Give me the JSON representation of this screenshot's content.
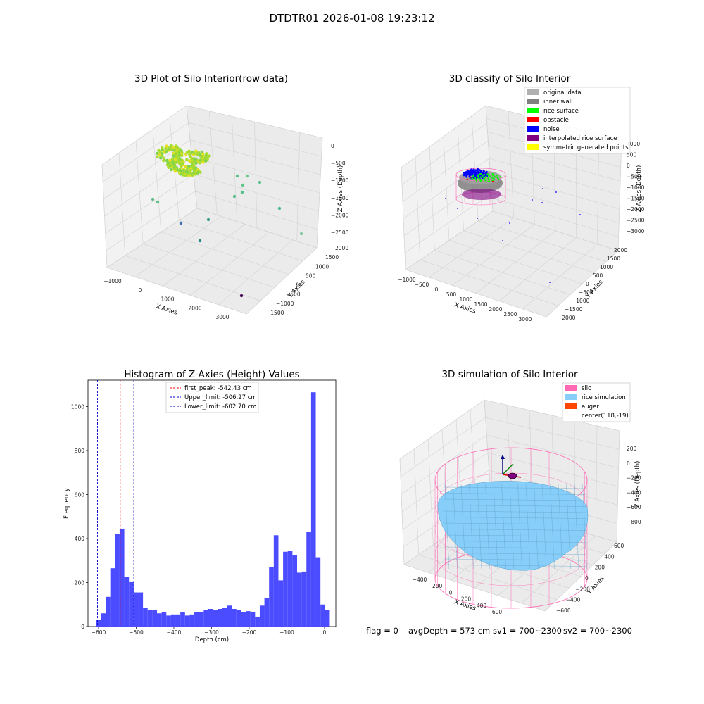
{
  "suptitle": "DTDTR01 2026-01-08 19:23:12",
  "footer": {
    "flag": "flag = 0",
    "avg": "avgDepth = 573 cm",
    "sv1": "sv1 = 700~2300",
    "sv2": "sv2 = 700~2300"
  },
  "colors": {
    "hist_bar": "#4b4bff",
    "first_peak": "#ff0000",
    "limit": "#0000cc",
    "rice_surface": "#00ff00",
    "noise": "#0000ff",
    "inner_wall": "#808080",
    "silo": "#ff69b4",
    "rice_sim": "#87cefa",
    "auger": "#ff4500"
  },
  "chart_data": [
    {
      "id": "raw3d",
      "type": "scatter",
      "title": "3D Plot of Silo Interior(row data)",
      "xlabel": "X Axies",
      "ylabel": "Y Axies",
      "zlabel": "Z Axies (Depth)",
      "xticks": [
        "−1000",
        "0",
        "1000",
        "2000",
        "3000"
      ],
      "yticks": [
        "−1500",
        "−1000",
        "−500",
        "0",
        "500",
        "1000",
        "1500",
        "2000"
      ],
      "zticks": [
        "0",
        "−500",
        "−1000",
        "−1500",
        "−2000",
        "−2500"
      ]
    },
    {
      "id": "classify3d",
      "type": "scatter",
      "title": "3D classify of Silo Interior",
      "xlabel": "X Axies",
      "ylabel": "Y Axies",
      "zlabel": "Z Axies (Depth)",
      "xticks": [
        "−1000",
        "−500",
        "0",
        "500",
        "1000",
        "1500",
        "2000",
        "2500",
        "3000"
      ],
      "yticks": [
        "−2000",
        "−1500",
        "−1000",
        "−500",
        "0",
        "500",
        "1000",
        "1500",
        "2000"
      ],
      "zticks": [
        "1000",
        "500",
        "0",
        "−500",
        "−1000",
        "−1500",
        "−2000",
        "−2500",
        "−3000"
      ],
      "legend": [
        {
          "label": "original data",
          "color": "#b0b0b0"
        },
        {
          "label": "inner wall",
          "color": "#808080"
        },
        {
          "label": "rice surface",
          "color": "#00ff00"
        },
        {
          "label": "obstacle",
          "color": "#ff0000"
        },
        {
          "label": "noise",
          "color": "#0000ff"
        },
        {
          "label": "interpolated rice surface",
          "color": "#800080"
        },
        {
          "label": "symmetric generated points",
          "color": "#ffff00"
        }
      ]
    },
    {
      "id": "hist",
      "type": "bar",
      "title": "Histogram of Z-Axies (Height) Values",
      "xlabel": "Depth (cm)",
      "ylabel": "Frequency",
      "xlim": [
        -628,
        30
      ],
      "ylim": [
        0,
        1120
      ],
      "xticks": [
        -600,
        -500,
        -400,
        -300,
        -200,
        -100,
        0
      ],
      "yticks": [
        0,
        200,
        400,
        600,
        800,
        1000
      ],
      "bin_start": -606,
      "bin_width": 12.4,
      "values": [
        30,
        60,
        135,
        265,
        420,
        445,
        225,
        205,
        155,
        155,
        85,
        75,
        75,
        60,
        65,
        50,
        55,
        55,
        65,
        50,
        55,
        65,
        65,
        75,
        80,
        75,
        80,
        85,
        95,
        80,
        75,
        65,
        70,
        65,
        45,
        95,
        130,
        270,
        415,
        210,
        340,
        345,
        325,
        245,
        250,
        430,
        1065,
        315,
        100,
        75
      ],
      "vlines": [
        {
          "label": "first_peak: -542.43 cm",
          "x": -542.43,
          "color": "#ff0000"
        },
        {
          "label": "Upper_limit: -506.27 cm",
          "x": -506.27,
          "color": "#0000cc"
        },
        {
          "label": "Lower_limit: -602.70 cm",
          "x": -602.7,
          "color": "#0000cc"
        }
      ]
    },
    {
      "id": "sim3d",
      "type": "area",
      "title": "3D simulation of Silo Interior",
      "xlabel": "X Axies",
      "ylabel": "Y Axies",
      "zlabel": "Z Axies (Depth)",
      "xticks": [
        "−400",
        "−200",
        "0",
        "200",
        "400",
        "600"
      ],
      "yticks": [
        "−600",
        "−400",
        "−200",
        "0",
        "200",
        "400",
        "600"
      ],
      "zticks": [
        "200",
        "0",
        "−200",
        "−400",
        "−600",
        "−800"
      ],
      "legend": [
        {
          "label": "silo",
          "color": "#ff69b4"
        },
        {
          "label": "rice simulation",
          "color": "#87cefa"
        },
        {
          "label": "auger",
          "color": "#ff4500"
        },
        {
          "label": "center(118,-19)",
          "color": ""
        }
      ]
    }
  ]
}
